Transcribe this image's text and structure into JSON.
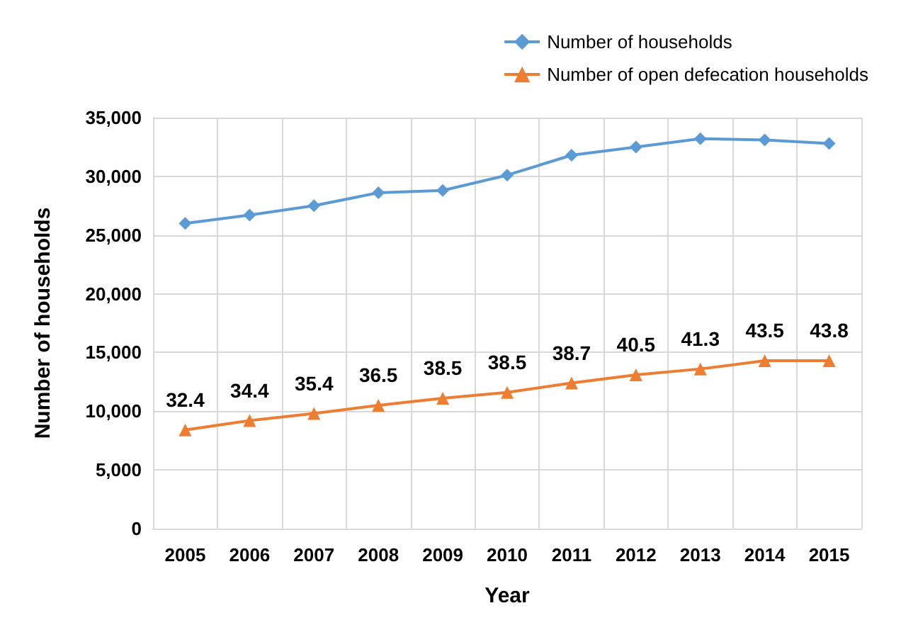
{
  "chart_data": {
    "type": "line",
    "xlabel": "Year",
    "ylabel": "Number of households",
    "categories": [
      "2005",
      "2006",
      "2007",
      "2008",
      "2009",
      "2010",
      "2011",
      "2012",
      "2013",
      "2014",
      "2015"
    ],
    "series": [
      {
        "name": "Number of households",
        "color": "#5b9bd5",
        "marker": "diamond",
        "values": [
          26000,
          26700,
          27500,
          28600,
          28800,
          30100,
          31800,
          32500,
          33200,
          33100,
          32800
        ]
      },
      {
        "name": "Number of open defecation households",
        "color": "#ed7d31",
        "marker": "triangle",
        "values": [
          8400,
          9200,
          9800,
          10500,
          11100,
          11600,
          12400,
          13100,
          13600,
          14300,
          14300
        ]
      }
    ],
    "annotations": [
      {
        "text": "32.4",
        "x": "2005",
        "y": 8400
      },
      {
        "text": "34.4",
        "x": "2006",
        "y": 9200
      },
      {
        "text": "35.4",
        "x": "2007",
        "y": 9800
      },
      {
        "text": "36.5",
        "x": "2008",
        "y": 10500
      },
      {
        "text": "38.5",
        "x": "2009",
        "y": 11100
      },
      {
        "text": "38.5",
        "x": "2010",
        "y": 11600
      },
      {
        "text": "38.7",
        "x": "2011",
        "y": 12400
      },
      {
        "text": "40.5",
        "x": "2012",
        "y": 13100
      },
      {
        "text": "41.3",
        "x": "2013",
        "y": 13600
      },
      {
        "text": "43.5",
        "x": "2014",
        "y": 14300
      },
      {
        "text": "43.8",
        "x": "2015",
        "y": 14300
      }
    ],
    "ylim": [
      0,
      35000
    ],
    "yticks": [
      0,
      {
        "value": 5000,
        "label": "5,000"
      },
      {
        "value": 10000,
        "label": "10,000"
      },
      {
        "value": 15000,
        "label": "15,000"
      },
      {
        "value": 20000,
        "label": "20,000"
      },
      {
        "value": 25000,
        "label": "25,000"
      },
      {
        "value": 30000,
        "label": "30,000"
      },
      {
        "value": 35000,
        "label": "35,000"
      }
    ],
    "grid": true,
    "legend": "top right"
  }
}
